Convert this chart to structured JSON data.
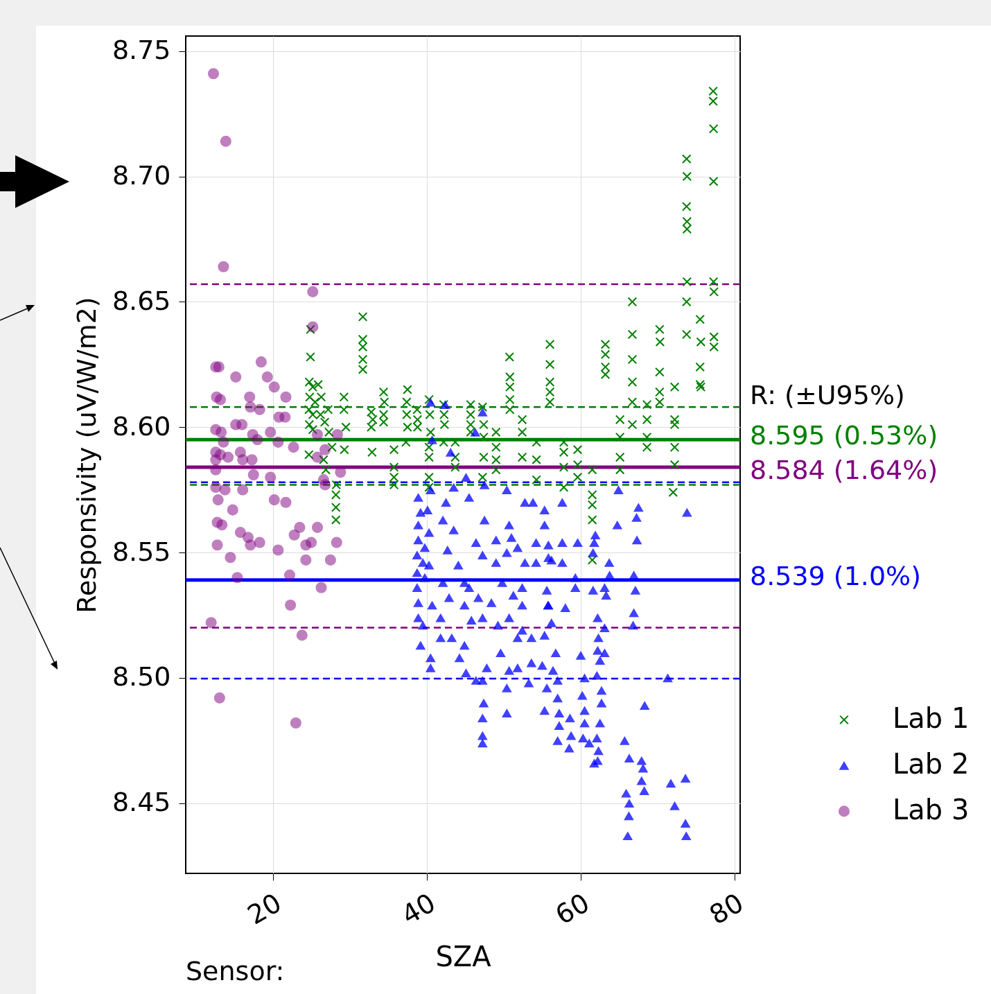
{
  "chart_data": {
    "type": "scatter",
    "xlabel": "SZA",
    "ylabel": "Responsivity (uV/W/m2)",
    "xlim": [
      8.7,
      80.7
    ],
    "ylim": [
      8.422,
      8.756
    ],
    "xticks": [
      20,
      40,
      60,
      80
    ],
    "yticks": [
      8.45,
      {
        "value": 8.5,
        "label": "8.50"
      },
      8.55,
      {
        "value": 8.6,
        "label": "8.60"
      },
      8.65,
      {
        "value": 8.7,
        "label": "8.70"
      },
      8.75
    ],
    "grid": true,
    "legend": "right",
    "annotations": [
      "R: (±U95%)",
      "Sensor:"
    ],
    "ref_lines": [
      {
        "axis": "y",
        "value": 8.608,
        "color": "#008000",
        "line_style": "dashed"
      },
      {
        "axis": "y",
        "value": 8.577,
        "color": "#008000",
        "line_style": "dashed"
      },
      {
        "axis": "y",
        "value": 8.657,
        "color": "#800080",
        "line_style": "dashed"
      },
      {
        "axis": "y",
        "value": 8.52,
        "color": "#800080",
        "line_style": "dashed"
      },
      {
        "axis": "y",
        "value": 8.578,
        "color": "#0000ff",
        "line_style": "dashed"
      },
      {
        "axis": "y",
        "value": 8.4997,
        "color": "#0000ff",
        "line_style": "dashed"
      },
      {
        "axis": "y",
        "value": 8.595,
        "color": "#008000",
        "line_style": "solid",
        "label": "8.595 (0.53%)"
      },
      {
        "axis": "y",
        "value": 8.584,
        "color": "#800080",
        "line_style": "solid",
        "label": "8.584 (1.64%)"
      },
      {
        "axis": "y",
        "value": 8.539,
        "color": "#0000ff",
        "line_style": "solid",
        "label": "8.539 (1.0%)"
      }
    ],
    "series": [
      {
        "name": "Lab 1",
        "color": "#008000",
        "marker": "cross",
        "x": [
          24.9,
          24.9,
          24.75,
          25.2,
          24.8,
          25.5,
          24.7,
          25.2,
          24.75,
          25.2,
          24.7,
          25.9,
          26.3,
          27.2,
          26.2,
          26.75,
          27.3,
          27.7,
          26.6,
          28.25,
          28.2,
          28.2,
          28.2,
          26.9,
          29.25,
          29.25,
          29.5,
          29.3,
          31.7,
          31.7,
          31.7,
          31.7,
          31.7,
          32.8,
          33.0,
          32.8,
          32.9,
          34.4,
          34.5,
          34.4,
          34.4,
          35.75,
          35.75,
          35.75,
          35.75,
          37.5,
          37.4,
          37.4,
          37.5,
          37.3,
          38.75,
          38.8,
          38.8,
          40.3,
          40.4,
          40.5,
          40.3,
          40.3,
          40.3,
          40.3,
          42.2,
          42.25,
          42.3,
          42.2,
          43.7,
          43.7,
          43.7,
          45.7,
          45.7,
          45.7,
          45.7,
          47.25,
          47.4,
          47.4,
          47.4,
          47.25,
          49.0,
          49.0,
          49.0,
          49.0,
          50.75,
          50.8,
          50.8,
          50.8,
          50.8,
          52.4,
          52.4,
          52.4,
          54.25,
          54.25,
          54.25,
          56.0,
          56.0,
          56.0,
          56.0,
          56.0,
          57.8,
          57.8,
          57.8,
          57.8,
          59.6,
          59.6,
          59.6,
          61.5,
          61.5,
          61.5,
          61.5,
          61.5,
          63.2,
          63.2,
          63.2,
          63.2,
          65.1,
          65.1,
          65.1,
          65.1,
          66.7,
          66.7,
          66.7,
          66.7,
          66.7,
          66.7,
          68.6,
          68.6,
          68.6,
          68.6,
          70.25,
          70.3,
          70.25,
          70.25,
          70.25,
          72.2,
          72.2,
          72.2,
          72.2,
          72.2,
          72.0,
          73.75,
          73.8,
          73.75,
          73.8,
          73.8,
          73.8,
          73.75,
          73.75,
          75.5,
          75.6,
          75.5,
          75.5,
          75.6,
          77.2,
          77.2,
          77.25,
          77.25,
          77.25,
          77.3,
          77.3,
          77.3
        ],
        "values": [
          8.639,
          8.628,
          8.618,
          8.616,
          8.612,
          8.61,
          8.607,
          8.605,
          8.601,
          8.599,
          8.589,
          8.617,
          8.612,
          8.607,
          8.605,
          8.602,
          8.598,
          8.592,
          8.587,
          8.577,
          8.573,
          8.568,
          8.563,
          8.583,
          8.612,
          8.607,
          8.6,
          8.591,
          8.644,
          8.635,
          8.632,
          8.627,
          8.623,
          8.606,
          8.603,
          8.6,
          8.59,
          8.614,
          8.61,
          8.605,
          8.602,
          8.591,
          8.584,
          8.58,
          8.577,
          8.615,
          8.61,
          8.605,
          8.6,
          8.594,
          8.607,
          8.603,
          8.6,
          8.611,
          8.605,
          8.598,
          8.592,
          8.588,
          8.58,
          8.576,
          8.609,
          8.605,
          8.601,
          8.594,
          8.594,
          8.588,
          8.584,
          8.609,
          8.605,
          8.601,
          8.598,
          8.608,
          8.601,
          8.596,
          8.588,
          8.58,
          8.598,
          8.592,
          8.587,
          8.583,
          8.628,
          8.62,
          8.616,
          8.611,
          8.607,
          8.603,
          8.598,
          8.588,
          8.594,
          8.587,
          8.579,
          8.633,
          8.625,
          8.618,
          8.614,
          8.61,
          8.594,
          8.59,
          8.584,
          8.576,
          8.591,
          8.585,
          8.58,
          8.583,
          8.573,
          8.569,
          8.563,
          8.547,
          8.633,
          8.629,
          8.624,
          8.621,
          8.603,
          8.596,
          8.588,
          8.583,
          8.65,
          8.637,
          8.627,
          8.618,
          8.61,
          8.601,
          8.609,
          8.603,
          8.596,
          8.592,
          8.639,
          8.634,
          8.622,
          8.614,
          8.61,
          8.616,
          8.603,
          8.601,
          8.592,
          8.585,
          8.574,
          8.707,
          8.7,
          8.688,
          8.682,
          8.679,
          8.658,
          8.65,
          8.637,
          8.643,
          8.634,
          8.624,
          8.617,
          8.616,
          8.734,
          8.73,
          8.719,
          8.698,
          8.658,
          8.654,
          8.636,
          8.632
        ]
      },
      {
        "name": "Lab 2",
        "color": "#0000ff",
        "marker": "triangle",
        "x": [
          38.9,
          40.5,
          42.5,
          43.5,
          45.5,
          47.5,
          50.4,
          52.75,
          53.8,
          55.3,
          57.6,
          64.9,
          67.5,
          67.25,
          64.75,
          67.3,
          59.6,
          61.9,
          61.75,
          61.6,
          63.7,
          63.75,
          63.1,
          63.3,
          61.6,
          66.9,
          67.1,
          66.9,
          66.8,
          59.3,
          59.3,
          57.6,
          57.6,
          55.8,
          56.2,
          55.6,
          55.8,
          58.0,
          56.2,
          62.2,
          63.1,
          62.3,
          62.2,
          63.1,
          62.5,
          62.1,
          62.7,
          62.7,
          62.5,
          62.1,
          62.3,
          62.2,
          68.3,
          65.7,
          66.3,
          67.9,
          68.1,
          67.9,
          68.25,
          65.9,
          66.3,
          66.25,
          66.1,
          60.0,
          60.5,
          60.2,
          60.5,
          60.5,
          60.3,
          61.1,
          61.75,
          58.75,
          58.5,
          56.75,
          56.4,
          57.0,
          55.6,
          55.3,
          57.0,
          57.2,
          57.2,
          57.0,
          58.6,
          55.0,
          53.6,
          53.25,
          51.8,
          50.7,
          50.4,
          50.4,
          51.8,
          49.6,
          47.8,
          47.25,
          47.4,
          47.25,
          47.25,
          47.25,
          46.4,
          45.1,
          44.25,
          44.9,
          43.25,
          41.8,
          40.5,
          40.5,
          39.2,
          39.5,
          38.9,
          38.9,
          38.75,
          38.75,
          38.75,
          38.9,
          38.9,
          39.2,
          40.1,
          40.3,
          40.3,
          40.7,
          41.8,
          42.1,
          42.7,
          42.1,
          43.5,
          44.1,
          44.9,
          44.9,
          45.8,
          46.7,
          47.25,
          48.4,
          46.4,
          47.25,
          47.5,
          49.0,
          49.0,
          50.4,
          50.7,
          51.0,
          51.8,
          52.75,
          52.4,
          52.4,
          51.25,
          50.7,
          49.8,
          54.2,
          54.2,
          55.3,
          55.8,
          55.75,
          55.3,
          52.4,
          53.6,
          49.25,
          42.9,
          45.5,
          39.75,
          39.5,
          39.75,
          71.3,
          73.8,
          71.7,
          73.6,
          72.2,
          73.6,
          73.7,
          40.5,
          42.4,
          40.7,
          43.1,
          46.3,
          47.25,
          45.1
        ],
        "values": [
          8.572,
          8.575,
          8.57,
          8.576,
          8.572,
          8.577,
          8.575,
          8.57,
          8.57,
          8.567,
          8.57,
          8.575,
          8.568,
          8.564,
          8.561,
          8.555,
          8.554,
          8.557,
          8.554,
          8.55,
          8.546,
          8.541,
          8.536,
          8.533,
          8.535,
          8.541,
          8.535,
          8.526,
          8.521,
          8.54,
          8.536,
          8.546,
          8.554,
          8.553,
          8.547,
          8.535,
          8.529,
          8.528,
          8.522,
          8.524,
          8.52,
          8.516,
          8.511,
          8.51,
          8.507,
          8.501,
          8.495,
          8.49,
          8.482,
          8.476,
          8.471,
          8.467,
          8.489,
          8.475,
          8.468,
          8.467,
          8.464,
          8.459,
          8.455,
          8.454,
          8.45,
          8.445,
          8.437,
          8.509,
          8.5,
          8.493,
          8.487,
          8.482,
          8.476,
          8.474,
          8.466,
          8.477,
          8.472,
          8.51,
          8.503,
          8.499,
          8.496,
          8.487,
          8.492,
          8.486,
          8.481,
          8.475,
          8.484,
          8.505,
          8.506,
          8.498,
          8.504,
          8.503,
          8.496,
          8.486,
          8.516,
          8.51,
          8.504,
          8.499,
          8.49,
          8.484,
          8.477,
          8.474,
          8.499,
          8.502,
          8.508,
          8.513,
          8.516,
          8.516,
          8.508,
          8.504,
          8.513,
          8.521,
          8.524,
          8.53,
          8.536,
          8.542,
          8.549,
          8.555,
          8.561,
          8.566,
          8.567,
          8.558,
          8.545,
          8.529,
          8.524,
          8.538,
          8.551,
          8.563,
          8.559,
          8.545,
          8.538,
          8.529,
          8.523,
          8.532,
          8.524,
          8.53,
          8.554,
          8.549,
          8.563,
          8.555,
          8.546,
          8.55,
          8.561,
          8.556,
          8.552,
          8.546,
          8.536,
          8.529,
          8.533,
          8.524,
          8.538,
          8.546,
          8.554,
          8.561,
          8.548,
          8.529,
          8.517,
          8.519,
          8.516,
          8.521,
          8.532,
          8.536,
          8.54,
          8.546,
          8.552,
          8.5,
          8.566,
          8.458,
          8.46,
          8.449,
          8.442,
          8.437,
          8.61,
          8.609,
          8.595,
          8.59,
          8.598,
          8.606,
          8.58
        ]
      },
      {
        "name": "Lab 3",
        "color": "#800080",
        "marker": "circle",
        "x": [
          12.3,
          13.9,
          13.6,
          25.2,
          25.2,
          12.6,
          13.0,
          15.2,
          18.5,
          19.3,
          20.2,
          17.0,
          12.7,
          13.2,
          21.7,
          17.1,
          18.3,
          20.8,
          21.6,
          15.2,
          16.0,
          12.6,
          13.3,
          25.8,
          28.4,
          17.4,
          19.7,
          13.6,
          15.8,
          18.0,
          20.7,
          22.7,
          12.6,
          13.2,
          14.2,
          16.1,
          17.3,
          26.8,
          25.8,
          12.6,
          12.6,
          28.8,
          17.5,
          26.6,
          19.7,
          12.6,
          13.8,
          16.1,
          26.8,
          12.9,
          20.2,
          21.7,
          14.8,
          12.8,
          13.4,
          15.8,
          16.8,
          18.3,
          12.8,
          14.5,
          17.1,
          20.7,
          22.8,
          24.3,
          25.0,
          28.3,
          22.2,
          15.4,
          24.3,
          27.5,
          26.3,
          22.3,
          12.0,
          23.8,
          13.1,
          23.0,
          23.5,
          25.8
        ],
        "values": [
          8.741,
          8.714,
          8.664,
          8.654,
          8.64,
          8.624,
          8.624,
          8.62,
          8.626,
          8.62,
          8.616,
          8.612,
          8.612,
          8.611,
          8.612,
          8.608,
          8.607,
          8.604,
          8.604,
          8.601,
          8.601,
          8.599,
          8.598,
          8.597,
          8.597,
          8.597,
          8.598,
          8.594,
          8.59,
          8.595,
          8.594,
          8.592,
          8.59,
          8.589,
          8.588,
          8.587,
          8.587,
          8.591,
          8.588,
          8.587,
          8.583,
          8.582,
          8.581,
          8.579,
          8.58,
          8.576,
          8.575,
          8.575,
          8.577,
          8.571,
          8.571,
          8.57,
          8.567,
          8.562,
          8.561,
          8.558,
          8.556,
          8.554,
          8.553,
          8.548,
          8.553,
          8.551,
          8.557,
          8.553,
          8.554,
          8.554,
          8.541,
          8.54,
          8.547,
          8.547,
          8.536,
          8.529,
          8.522,
          8.517,
          8.492,
          8.482,
          8.56,
          8.56
        ]
      }
    ]
  }
}
